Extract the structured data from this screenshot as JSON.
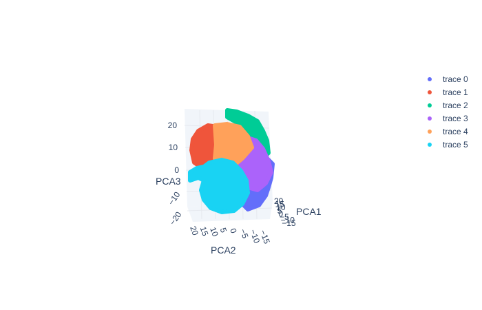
{
  "chart_data": {
    "type": "scatter3d",
    "axes": {
      "x": {
        "title": "PCA1",
        "ticks": [
          "20",
          "15",
          "10",
          "5",
          "0",
          "−5",
          "−10",
          "−15"
        ]
      },
      "y": {
        "title": "PCA2",
        "ticks": [
          "20",
          "15",
          "10",
          "5",
          "0",
          "−5",
          "−10",
          "−15"
        ]
      },
      "z": {
        "title": "PCA3",
        "ticks": [
          "20",
          "10",
          "0",
          "−10",
          "−20"
        ],
        "range": [
          -25,
          25
        ]
      }
    },
    "legend_position": "top-right",
    "series": [
      {
        "name": "trace 0",
        "color": "#636efa"
      },
      {
        "name": "trace 1",
        "color": "#ef553b"
      },
      {
        "name": "trace 2",
        "color": "#00cc96"
      },
      {
        "name": "trace 3",
        "color": "#ab63fa"
      },
      {
        "name": "trace 4",
        "color": "#ffa15a"
      },
      {
        "name": "trace 5",
        "color": "#19d3f3"
      }
    ]
  }
}
